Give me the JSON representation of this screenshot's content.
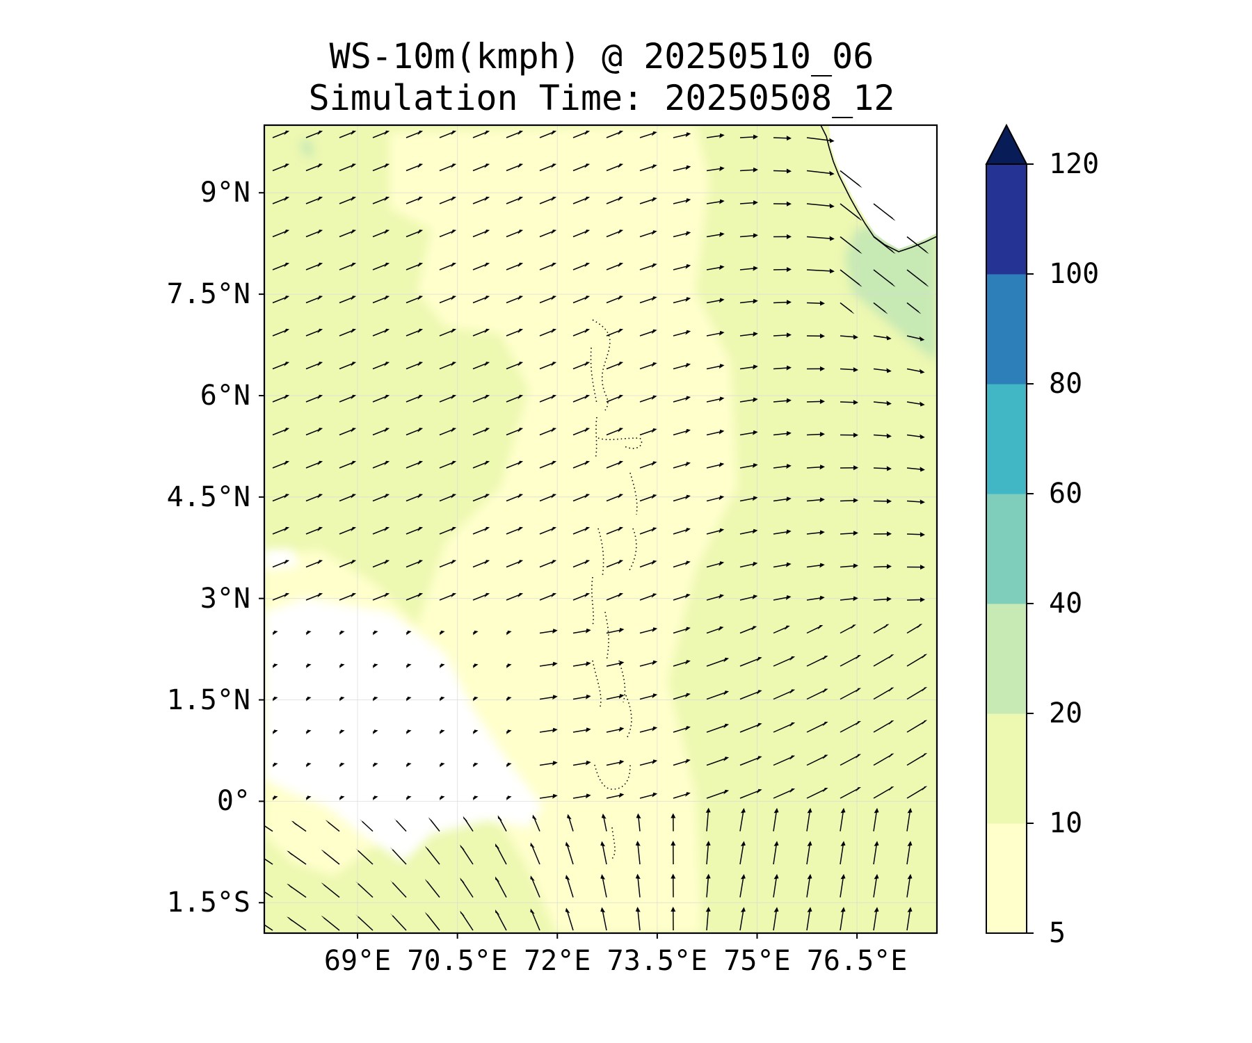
{
  "title": {
    "line1": "WS-10m(kmph) @ 20250510_06",
    "line2": "Simulation Time: 20250508_12"
  },
  "map": {
    "lon_range": [
      67.6,
      77.7
    ],
    "lat_range": [
      -1.95,
      10.0
    ],
    "lon_ticks": [
      {
        "value": 69,
        "label": "69°E"
      },
      {
        "value": 70.5,
        "label": "70.5°E"
      },
      {
        "value": 72,
        "label": "72°E"
      },
      {
        "value": 73.5,
        "label": "73.5°E"
      },
      {
        "value": 75,
        "label": "75°E"
      },
      {
        "value": 76.5,
        "label": "76.5°E"
      }
    ],
    "lat_ticks": [
      {
        "value": 9,
        "label": "9°N"
      },
      {
        "value": 7.5,
        "label": "7.5°N"
      },
      {
        "value": 6,
        "label": "6°N"
      },
      {
        "value": 4.5,
        "label": "4.5°N"
      },
      {
        "value": 3,
        "label": "3°N"
      },
      {
        "value": 1.5,
        "label": "1.5°N"
      },
      {
        "value": 0,
        "label": "0°"
      },
      {
        "value": -1.5,
        "label": "1.5°S"
      }
    ],
    "gridlines": true,
    "variable": "10 m wind speed (kmph) with wind vectors",
    "background_class_color": "#edf8b1",
    "calm_color": "#ffffff",
    "light_color": "#ffffcc",
    "strong_color": "#c7e9b4"
  },
  "colorbar": {
    "levels": [
      {
        "value": 5,
        "label": "5"
      },
      {
        "value": 10,
        "label": "10"
      },
      {
        "value": 20,
        "label": "20"
      },
      {
        "value": 40,
        "label": "40"
      },
      {
        "value": 60,
        "label": "60"
      },
      {
        "value": 80,
        "label": "80"
      },
      {
        "value": 100,
        "label": "100"
      },
      {
        "value": 120,
        "label": "120"
      }
    ],
    "colors": [
      "#ffffcc",
      "#edf8b1",
      "#c7e9b4",
      "#7fcdbb",
      "#41b6c4",
      "#2c7fb8",
      "#253494"
    ],
    "extend_color": "#081d58",
    "extend": "max"
  }
}
